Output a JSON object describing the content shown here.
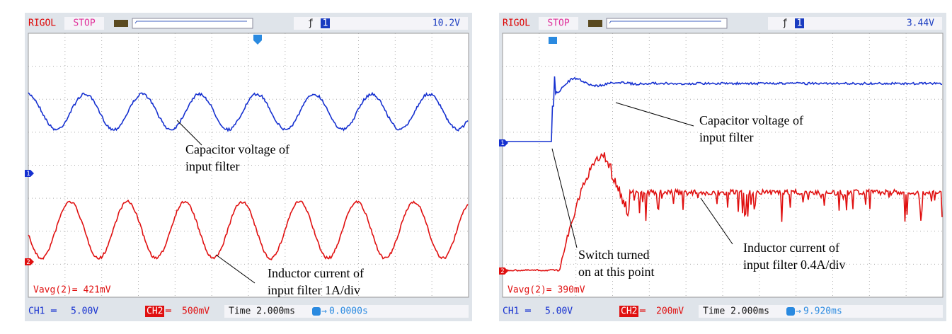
{
  "panels": [
    {
      "brand": "RIGOL",
      "status": "STOP",
      "trigger_source": "1",
      "trigger_level": "10.2V",
      "channel_markers": [
        "1",
        "2"
      ],
      "annotations": [
        {
          "lines": [
            "Capacitor voltage of",
            "input filter"
          ]
        },
        {
          "lines": [
            "Inductor current of",
            "input filter 1A/div"
          ]
        }
      ],
      "measurement": "Vavg(2)= 421mV",
      "footer": {
        "ch1": "CH1",
        "ch1_scale": "5.00V",
        "ch2": "CH2",
        "ch2_scale": "500mV",
        "timebase": "Time 2.000ms",
        "trigger_offset": "0.0000s"
      }
    },
    {
      "brand": "RIGOL",
      "status": "STOP",
      "trigger_source": "1",
      "trigger_level": "3.44V",
      "channel_markers": [
        "1",
        "2"
      ],
      "annotations": [
        {
          "lines": [
            "Capacitor voltage of",
            "input filter"
          ]
        },
        {
          "lines": [
            "Switch turned",
            "on at this point"
          ]
        },
        {
          "lines": [
            "Inductor current of",
            "input filter 0.4A/div"
          ]
        }
      ],
      "measurement": "Vavg(2)= 390mV",
      "footer": {
        "ch1": "CH1",
        "ch1_scale": "5.00V",
        "ch2": "CH2",
        "ch2_scale": "200mV",
        "timebase": "Time 2.000ms",
        "trigger_offset": "9.920ms"
      }
    }
  ]
}
